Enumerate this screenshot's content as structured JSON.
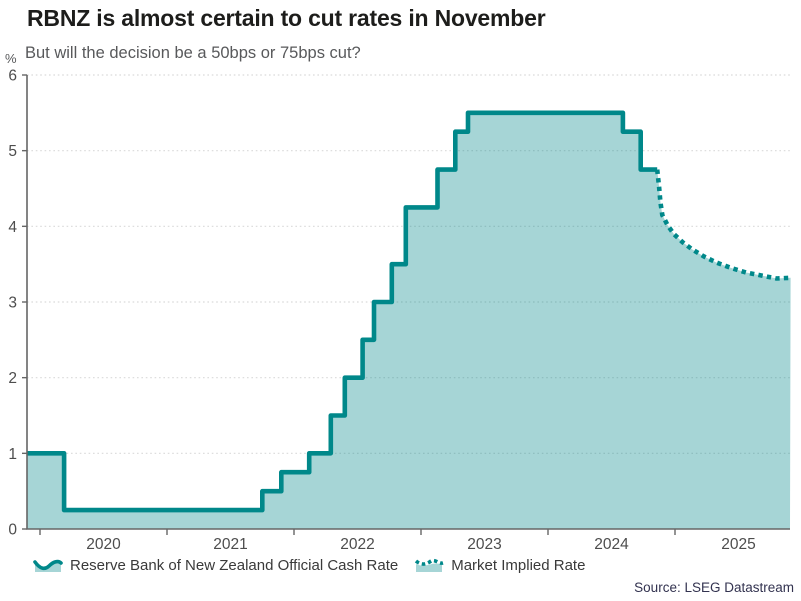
{
  "header": {
    "title": "RBNZ is almost certain to cut rates in November",
    "subtitle": "But will the decision be a 50bps or 75bps cut?"
  },
  "axes": {
    "y_unit": "%",
    "y_ticks": [
      0,
      1,
      2,
      3,
      4,
      5,
      6
    ],
    "x_ticks": [
      2020,
      2021,
      2022,
      2023,
      2024,
      2025
    ]
  },
  "legend": {
    "items": [
      {
        "icon": "area-wave-icon",
        "label": "Reserve Bank of New Zealand Official Cash Rate"
      },
      {
        "icon": "dotted-wave-icon",
        "label": "Market Implied Rate"
      }
    ]
  },
  "source": "Source: LSEG Datastream",
  "colors": {
    "line": "#00888a",
    "fill": "rgba(0,136,138,0.35)",
    "grid": "#d9d9d9",
    "axis": "#666666",
    "tick_label": "#4d4d4d"
  },
  "chart_data": {
    "type": "area",
    "title": "RBNZ is almost certain to cut rates in November",
    "subtitle": "But will the decision be a 50bps or 75bps cut?",
    "xlabel": "",
    "ylabel": "%",
    "ylim": [
      0,
      6
    ],
    "x_domain": [
      2019.9,
      2025.91
    ],
    "grid": "dotted-horizontal",
    "legend_position": "bottom",
    "series": [
      {
        "name": "Reserve Bank of New Zealand Official Cash Rate",
        "style": "step-solid-area",
        "points": [
          [
            2019.9,
            1.0
          ],
          [
            2020.19,
            0.25
          ],
          [
            2021.75,
            0.5
          ],
          [
            2021.9,
            0.75
          ],
          [
            2022.12,
            1.0
          ],
          [
            2022.29,
            1.5
          ],
          [
            2022.4,
            2.0
          ],
          [
            2022.54,
            2.5
          ],
          [
            2022.63,
            3.0
          ],
          [
            2022.77,
            3.5
          ],
          [
            2022.88,
            4.25
          ],
          [
            2023.13,
            4.75
          ],
          [
            2023.27,
            5.25
          ],
          [
            2023.37,
            5.5
          ],
          [
            2024.59,
            5.25
          ],
          [
            2024.73,
            4.75
          ],
          [
            2024.86,
            4.75
          ]
        ]
      },
      {
        "name": "Market Implied Rate",
        "style": "dotted-line-area",
        "points": [
          [
            2024.86,
            4.75
          ],
          [
            2024.875,
            4.52
          ],
          [
            2024.885,
            4.32
          ],
          [
            2024.9,
            4.15
          ],
          [
            2024.94,
            4.02
          ],
          [
            2024.99,
            3.9
          ],
          [
            2025.06,
            3.79
          ],
          [
            2025.14,
            3.69
          ],
          [
            2025.23,
            3.6
          ],
          [
            2025.33,
            3.52
          ],
          [
            2025.44,
            3.45
          ],
          [
            2025.56,
            3.39
          ],
          [
            2025.68,
            3.35
          ],
          [
            2025.8,
            3.31
          ],
          [
            2025.91,
            3.32
          ]
        ]
      }
    ]
  }
}
